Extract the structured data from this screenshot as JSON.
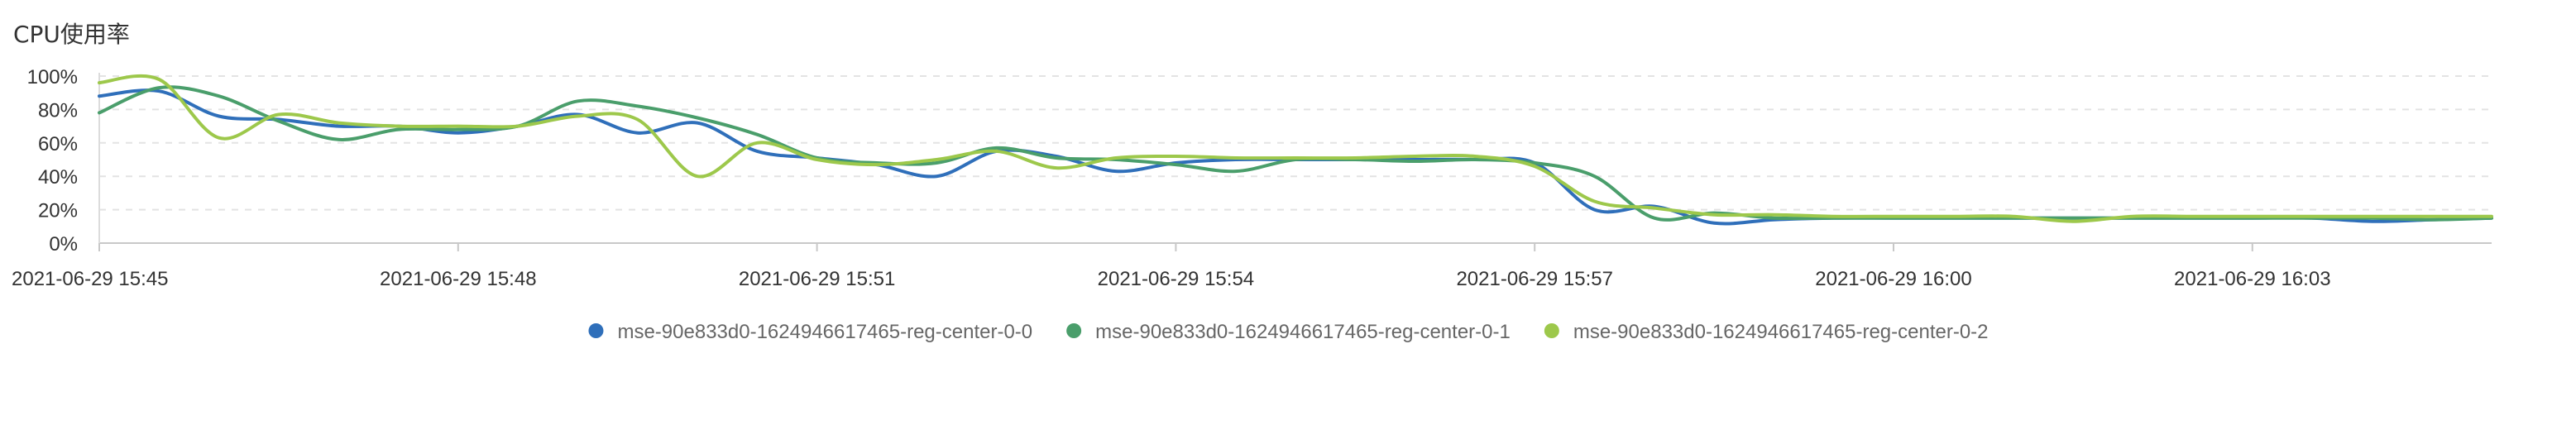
{
  "chart_data": {
    "type": "line",
    "title": "CPU使用率",
    "xlabel": "",
    "ylabel": "",
    "ylim": [
      0,
      100
    ],
    "y_ticks": [
      "0%",
      "20%",
      "40%",
      "60%",
      "80%",
      "100%"
    ],
    "x_range": [
      0,
      20
    ],
    "x_ticks": [
      {
        "x": 0,
        "label": "2021-06-29 15:45"
      },
      {
        "x": 3,
        "label": "2021-06-29 15:48"
      },
      {
        "x": 6,
        "label": "2021-06-29 15:51"
      },
      {
        "x": 9,
        "label": "2021-06-29 15:54"
      },
      {
        "x": 12,
        "label": "2021-06-29 15:57"
      },
      {
        "x": 15,
        "label": "2021-06-29 16:00"
      },
      {
        "x": 18,
        "label": "2021-06-29 16:03"
      }
    ],
    "grid": true,
    "legend_position": "bottom",
    "x": [
      0,
      0.5,
      1,
      1.5,
      2,
      2.5,
      3,
      3.5,
      4,
      4.5,
      5,
      5.5,
      6,
      6.5,
      7,
      7.5,
      8,
      8.5,
      9,
      9.5,
      10,
      10.5,
      11,
      11.5,
      12,
      12.5,
      13,
      13.5,
      14,
      14.5,
      15,
      15.5,
      16,
      16.5,
      17,
      17.5,
      18,
      18.5,
      19,
      19.5,
      20
    ],
    "series": [
      {
        "name": "mse-90e833d0-1624946617465-reg-center-0-0",
        "color": "#2f6fba",
        "values": [
          88,
          91,
          76,
          74,
          70,
          70,
          66,
          70,
          77,
          66,
          72,
          55,
          51,
          47,
          40,
          55,
          52,
          43,
          48,
          50,
          50,
          50,
          50,
          50,
          48,
          20,
          22,
          12,
          14,
          15,
          15,
          15,
          15,
          15,
          15,
          15,
          15,
          15,
          13,
          14,
          15
        ]
      },
      {
        "name": "mse-90e833d0-1624946617465-reg-center-0-1",
        "color": "#4a9e6b",
        "values": [
          78,
          93,
          88,
          73,
          62,
          68,
          68,
          70,
          85,
          82,
          75,
          65,
          51,
          48,
          48,
          57,
          51,
          50,
          47,
          43,
          50,
          50,
          49,
          50,
          48,
          40,
          15,
          18,
          15,
          15,
          15,
          15,
          15,
          15,
          15,
          15,
          15,
          15,
          15,
          14,
          15
        ]
      },
      {
        "name": "mse-90e833d0-1624946617465-reg-center-0-2",
        "color": "#9dc84b",
        "values": [
          96,
          98,
          63,
          77,
          72,
          70,
          70,
          70,
          76,
          74,
          40,
          60,
          50,
          47,
          50,
          55,
          45,
          51,
          52,
          51,
          51,
          51,
          52,
          52,
          46,
          25,
          21,
          17,
          17,
          16,
          16,
          16,
          16,
          13,
          16,
          16,
          16,
          16,
          16,
          16,
          16
        ]
      }
    ]
  }
}
